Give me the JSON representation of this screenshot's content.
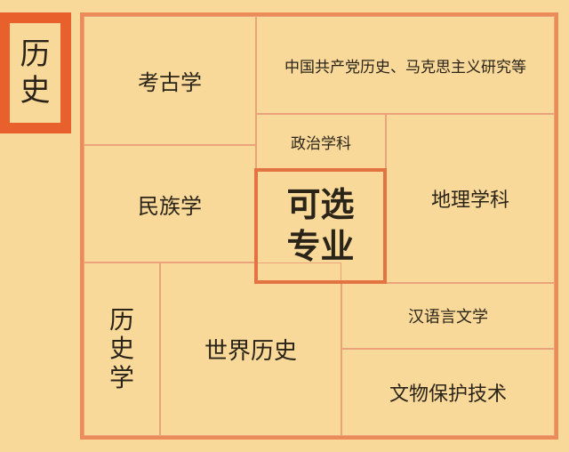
{
  "subject": {
    "label_line1": "历",
    "label_line2": "史"
  },
  "center": {
    "line1": "可选",
    "line2": "专业"
  },
  "majors": {
    "archaeology": "考古学",
    "cpc_history": "中国共产党历史、马克思主义研究等",
    "political": "政治学科",
    "ethnology": "民族学",
    "geography": "地理学科",
    "history_c1": "历",
    "history_c2": "史",
    "history_c3": "学",
    "world_history": "世界历史",
    "chinese_lang": "汉语言文学",
    "relic_protection": "文物保护技术"
  },
  "colors": {
    "background": "#f9d99a",
    "accent": "#e8612c",
    "border": "#eb8b5a"
  }
}
